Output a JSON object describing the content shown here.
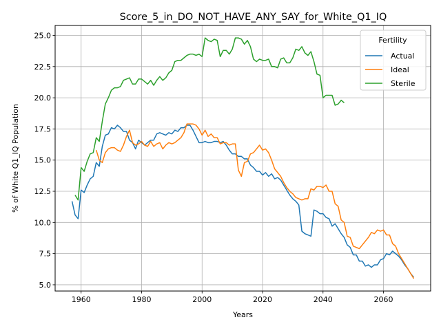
{
  "chart_data": {
    "type": "line",
    "title": "Score_5_in_DO_NOT_HAVE_ANY_SAY_for_White_Q1_IQ",
    "xlabel": "Years",
    "ylabel": "% of White Q1_IQ Population",
    "xlim": [
      1951.4,
      2075.6
    ],
    "ylim": [
      4.5,
      25.8
    ],
    "x_ticks": [
      1960,
      1980,
      2000,
      2020,
      2040,
      2060
    ],
    "y_ticks": [
      5.0,
      7.5,
      10.0,
      12.5,
      15.0,
      17.5,
      20.0,
      22.5,
      25.0
    ],
    "grid": true,
    "legend": {
      "title": "Fertility",
      "placement": "top-right"
    },
    "series": [
      {
        "name": "Actual",
        "color": "#1f77b4",
        "points": [
          [
            1957,
            11.7
          ],
          [
            1958,
            10.6
          ],
          [
            1959,
            10.3
          ],
          [
            1960,
            12.6
          ],
          [
            1961,
            12.4
          ],
          [
            1962,
            13.0
          ],
          [
            1963,
            13.5
          ],
          [
            1964,
            13.7
          ],
          [
            1965,
            14.8
          ],
          [
            1966,
            14.5
          ],
          [
            1967,
            16.1
          ],
          [
            1968,
            17.0
          ],
          [
            1969,
            17.1
          ],
          [
            1970,
            17.6
          ],
          [
            1971,
            17.5
          ],
          [
            1972,
            17.8
          ],
          [
            1973,
            17.6
          ],
          [
            1974,
            17.3
          ],
          [
            1975,
            17.3
          ],
          [
            1976,
            16.6
          ],
          [
            1977,
            16.4
          ],
          [
            1978,
            15.9
          ],
          [
            1979,
            16.6
          ],
          [
            1980,
            16.4
          ],
          [
            1981,
            16.2
          ],
          [
            1982,
            16.4
          ],
          [
            1983,
            16.6
          ],
          [
            1984,
            16.6
          ],
          [
            1985,
            17.1
          ],
          [
            1986,
            17.2
          ],
          [
            1987,
            17.1
          ],
          [
            1988,
            17.0
          ],
          [
            1989,
            17.2
          ],
          [
            1990,
            17.1
          ],
          [
            1991,
            17.4
          ],
          [
            1992,
            17.3
          ],
          [
            1993,
            17.6
          ],
          [
            1994,
            17.6
          ],
          [
            1995,
            17.8
          ],
          [
            1996,
            17.8
          ],
          [
            1997,
            17.4
          ],
          [
            1998,
            16.9
          ],
          [
            1999,
            16.4
          ],
          [
            2000,
            16.4
          ],
          [
            2001,
            16.5
          ],
          [
            2002,
            16.4
          ],
          [
            2003,
            16.4
          ],
          [
            2004,
            16.5
          ],
          [
            2005,
            16.5
          ],
          [
            2006,
            16.4
          ],
          [
            2007,
            16.5
          ],
          [
            2008,
            16.2
          ],
          [
            2009,
            15.8
          ],
          [
            2010,
            15.5
          ],
          [
            2011,
            15.5
          ],
          [
            2012,
            15.3
          ],
          [
            2013,
            15.3
          ],
          [
            2014,
            15.1
          ],
          [
            2015,
            15.1
          ],
          [
            2016,
            14.6
          ],
          [
            2017,
            14.4
          ],
          [
            2018,
            14.1
          ],
          [
            2019,
            14.1
          ],
          [
            2020,
            13.8
          ],
          [
            2021,
            14.0
          ],
          [
            2022,
            13.7
          ],
          [
            2023,
            13.9
          ],
          [
            2024,
            13.5
          ],
          [
            2025,
            13.6
          ],
          [
            2026,
            13.4
          ],
          [
            2027,
            13.0
          ],
          [
            2028,
            12.6
          ],
          [
            2029,
            12.2
          ],
          [
            2030,
            11.9
          ],
          [
            2031,
            11.7
          ],
          [
            2032,
            11.4
          ],
          [
            2033,
            9.3
          ],
          [
            2034,
            9.1
          ],
          [
            2035,
            9.0
          ],
          [
            2036,
            8.9
          ],
          [
            2037,
            11.0
          ],
          [
            2038,
            10.9
          ],
          [
            2039,
            10.7
          ],
          [
            2040,
            10.7
          ],
          [
            2041,
            10.4
          ],
          [
            2042,
            10.3
          ],
          [
            2043,
            9.7
          ],
          [
            2044,
            9.9
          ],
          [
            2045,
            9.5
          ],
          [
            2046,
            9.1
          ],
          [
            2047,
            8.8
          ],
          [
            2048,
            8.2
          ],
          [
            2049,
            8.0
          ],
          [
            2050,
            7.4
          ],
          [
            2051,
            7.4
          ],
          [
            2052,
            6.9
          ],
          [
            2053,
            6.9
          ],
          [
            2054,
            6.5
          ],
          [
            2055,
            6.6
          ],
          [
            2056,
            6.4
          ],
          [
            2057,
            6.6
          ],
          [
            2058,
            6.6
          ],
          [
            2059,
            7.0
          ],
          [
            2060,
            7.1
          ],
          [
            2061,
            7.5
          ],
          [
            2062,
            7.4
          ],
          [
            2063,
            7.7
          ],
          [
            2064,
            7.5
          ],
          [
            2065,
            7.3
          ],
          [
            2066,
            7.0
          ],
          [
            2067,
            6.6
          ],
          [
            2068,
            6.3
          ],
          [
            2069,
            5.9
          ],
          [
            2070,
            5.6
          ]
        ]
      },
      {
        "name": "Ideal",
        "color": "#ff7f0e",
        "points": [
          [
            1965,
            15.8
          ],
          [
            1966,
            15.0
          ],
          [
            1967,
            14.8
          ],
          [
            1968,
            15.6
          ],
          [
            1969,
            15.9
          ],
          [
            1970,
            16.0
          ],
          [
            1971,
            16.0
          ],
          [
            1972,
            15.8
          ],
          [
            1973,
            15.7
          ],
          [
            1974,
            16.2
          ],
          [
            1975,
            16.9
          ],
          [
            1976,
            17.4
          ],
          [
            1977,
            16.4
          ],
          [
            1978,
            16.2
          ],
          [
            1979,
            16.3
          ],
          [
            1980,
            16.5
          ],
          [
            1981,
            16.2
          ],
          [
            1982,
            16.1
          ],
          [
            1983,
            16.5
          ],
          [
            1984,
            16.1
          ],
          [
            1985,
            16.3
          ],
          [
            1986,
            16.4
          ],
          [
            1987,
            15.9
          ],
          [
            1988,
            16.2
          ],
          [
            1989,
            16.4
          ],
          [
            1990,
            16.3
          ],
          [
            1991,
            16.4
          ],
          [
            1992,
            16.6
          ],
          [
            1993,
            16.8
          ],
          [
            1994,
            17.2
          ],
          [
            1995,
            17.9
          ],
          [
            1996,
            17.9
          ],
          [
            1997,
            17.9
          ],
          [
            1998,
            17.8
          ],
          [
            1999,
            17.5
          ],
          [
            2000,
            17.0
          ],
          [
            2001,
            17.4
          ],
          [
            2002,
            16.9
          ],
          [
            2003,
            17.1
          ],
          [
            2004,
            16.8
          ],
          [
            2005,
            16.8
          ],
          [
            2006,
            16.3
          ],
          [
            2007,
            16.4
          ],
          [
            2008,
            16.4
          ],
          [
            2009,
            16.2
          ],
          [
            2010,
            16.3
          ],
          [
            2011,
            16.3
          ],
          [
            2012,
            14.2
          ],
          [
            2013,
            13.7
          ],
          [
            2014,
            14.8
          ],
          [
            2015,
            14.9
          ],
          [
            2016,
            15.5
          ],
          [
            2017,
            15.6
          ],
          [
            2018,
            15.9
          ],
          [
            2019,
            16.2
          ],
          [
            2020,
            15.8
          ],
          [
            2021,
            15.9
          ],
          [
            2022,
            15.6
          ],
          [
            2023,
            15.0
          ],
          [
            2024,
            14.3
          ],
          [
            2025,
            14.0
          ],
          [
            2026,
            13.7
          ],
          [
            2027,
            13.2
          ],
          [
            2028,
            12.8
          ],
          [
            2029,
            12.5
          ],
          [
            2030,
            12.3
          ],
          [
            2031,
            12.0
          ],
          [
            2032,
            11.9
          ],
          [
            2033,
            11.8
          ],
          [
            2034,
            11.9
          ],
          [
            2035,
            11.9
          ],
          [
            2036,
            12.7
          ],
          [
            2037,
            12.6
          ],
          [
            2038,
            12.9
          ],
          [
            2039,
            12.9
          ],
          [
            2040,
            12.8
          ],
          [
            2041,
            13.0
          ],
          [
            2042,
            12.5
          ],
          [
            2043,
            12.5
          ],
          [
            2044,
            11.5
          ],
          [
            2045,
            11.3
          ],
          [
            2046,
            10.2
          ],
          [
            2047,
            10.0
          ],
          [
            2048,
            8.9
          ],
          [
            2049,
            8.8
          ],
          [
            2050,
            8.1
          ],
          [
            2051,
            8.0
          ],
          [
            2052,
            7.9
          ],
          [
            2053,
            8.2
          ],
          [
            2054,
            8.5
          ],
          [
            2055,
            8.8
          ],
          [
            2056,
            9.2
          ],
          [
            2057,
            9.1
          ],
          [
            2058,
            9.4
          ],
          [
            2059,
            9.3
          ],
          [
            2060,
            9.4
          ],
          [
            2061,
            9.0
          ],
          [
            2062,
            9.0
          ],
          [
            2063,
            8.3
          ],
          [
            2064,
            8.1
          ],
          [
            2065,
            7.5
          ],
          [
            2066,
            7.1
          ],
          [
            2067,
            6.7
          ],
          [
            2068,
            6.3
          ],
          [
            2069,
            5.9
          ],
          [
            2070,
            5.5
          ]
        ]
      },
      {
        "name": "Sterile",
        "color": "#2ca02c",
        "points": [
          [
            1958,
            12.2
          ],
          [
            1959,
            11.8
          ],
          [
            1960,
            14.4
          ],
          [
            1961,
            14.1
          ],
          [
            1962,
            14.9
          ],
          [
            1963,
            15.5
          ],
          [
            1964,
            15.6
          ],
          [
            1965,
            16.8
          ],
          [
            1966,
            16.5
          ],
          [
            1967,
            18.1
          ],
          [
            1968,
            19.5
          ],
          [
            1969,
            20.0
          ],
          [
            1970,
            20.6
          ],
          [
            1971,
            20.8
          ],
          [
            1972,
            20.8
          ],
          [
            1973,
            20.9
          ],
          [
            1974,
            21.4
          ],
          [
            1975,
            21.5
          ],
          [
            1976,
            21.6
          ],
          [
            1977,
            21.1
          ],
          [
            1978,
            21.1
          ],
          [
            1979,
            21.5
          ],
          [
            1980,
            21.5
          ],
          [
            1981,
            21.3
          ],
          [
            1982,
            21.1
          ],
          [
            1983,
            21.4
          ],
          [
            1984,
            21.0
          ],
          [
            1985,
            21.4
          ],
          [
            1986,
            21.7
          ],
          [
            1987,
            21.4
          ],
          [
            1988,
            21.6
          ],
          [
            1989,
            22.0
          ],
          [
            1990,
            22.2
          ],
          [
            1991,
            22.9
          ],
          [
            1992,
            23.0
          ],
          [
            1993,
            23.0
          ],
          [
            1994,
            23.2
          ],
          [
            1995,
            23.4
          ],
          [
            1996,
            23.5
          ],
          [
            1997,
            23.5
          ],
          [
            1998,
            23.4
          ],
          [
            1999,
            23.5
          ],
          [
            2000,
            23.3
          ],
          [
            2001,
            24.8
          ],
          [
            2002,
            24.6
          ],
          [
            2003,
            24.5
          ],
          [
            2004,
            24.7
          ],
          [
            2005,
            24.6
          ],
          [
            2006,
            23.3
          ],
          [
            2007,
            23.8
          ],
          [
            2008,
            23.8
          ],
          [
            2009,
            23.5
          ],
          [
            2010,
            23.9
          ],
          [
            2011,
            24.8
          ],
          [
            2012,
            24.8
          ],
          [
            2013,
            24.7
          ],
          [
            2014,
            24.3
          ],
          [
            2015,
            24.6
          ],
          [
            2016,
            24.1
          ],
          [
            2017,
            23.1
          ],
          [
            2018,
            22.9
          ],
          [
            2019,
            23.1
          ],
          [
            2020,
            23.0
          ],
          [
            2021,
            23.0
          ],
          [
            2022,
            23.1
          ],
          [
            2023,
            22.5
          ],
          [
            2024,
            22.5
          ],
          [
            2025,
            22.4
          ],
          [
            2026,
            23.1
          ],
          [
            2027,
            23.2
          ],
          [
            2028,
            22.8
          ],
          [
            2029,
            22.8
          ],
          [
            2030,
            23.2
          ],
          [
            2031,
            23.9
          ],
          [
            2032,
            23.8
          ],
          [
            2033,
            24.1
          ],
          [
            2034,
            23.6
          ],
          [
            2035,
            23.4
          ],
          [
            2036,
            23.7
          ],
          [
            2037,
            22.9
          ],
          [
            2038,
            21.9
          ],
          [
            2039,
            21.8
          ],
          [
            2040,
            20.0
          ],
          [
            2041,
            20.2
          ],
          [
            2042,
            20.2
          ],
          [
            2043,
            20.2
          ],
          [
            2044,
            19.4
          ],
          [
            2045,
            19.5
          ],
          [
            2046,
            19.8
          ],
          [
            2047,
            19.6
          ]
        ]
      }
    ]
  }
}
